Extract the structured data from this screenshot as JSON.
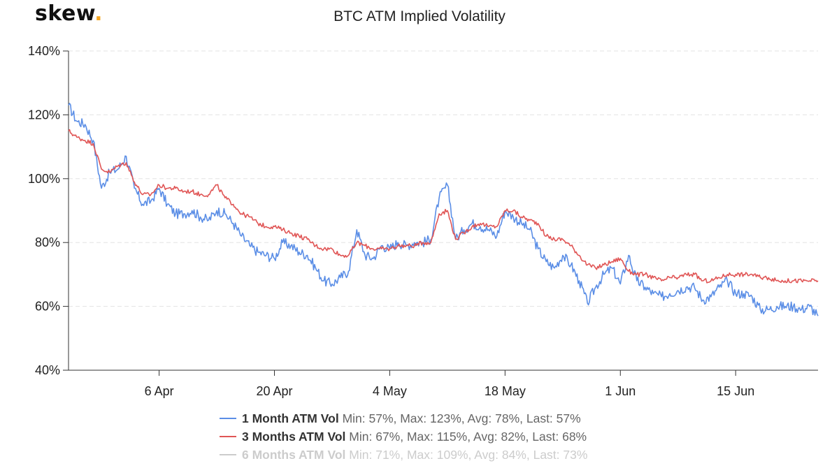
{
  "brand": {
    "logo_text": "skew",
    "logo_dot": ".",
    "accent_color": "#f5a623"
  },
  "chart_data": {
    "type": "line",
    "title": "BTC ATM Implied Volatility",
    "xlabel": "",
    "ylabel": "",
    "x_start": "2020-03-26",
    "x_end": "2020-06-25",
    "x_ticks": [
      {
        "date": "2020-04-06",
        "label": "6 Apr"
      },
      {
        "date": "2020-04-20",
        "label": "20 Apr"
      },
      {
        "date": "2020-05-04",
        "label": "4 May"
      },
      {
        "date": "2020-05-18",
        "label": "18 May"
      },
      {
        "date": "2020-06-01",
        "label": "1 Jun"
      },
      {
        "date": "2020-06-15",
        "label": "15 Jun"
      }
    ],
    "ylim": [
      40,
      140
    ],
    "y_ticks": [
      40,
      60,
      80,
      100,
      120,
      140
    ],
    "y_tick_labels": [
      "40%",
      "60%",
      "80%",
      "100%",
      "120%",
      "140%"
    ],
    "grid": "horizontal dashed",
    "legend_position": "bottom",
    "series": [
      {
        "name": "1 Month ATM Vol",
        "color": "#5b8ee6",
        "visible": true,
        "stats": "Min: 57%, Max: 123%, Avg: 78%, Last: 57%",
        "points": [
          [
            "2020-03-26",
            123
          ],
          [
            "2020-03-27",
            118
          ],
          [
            "2020-03-28",
            117
          ],
          [
            "2020-03-29",
            112
          ],
          [
            "2020-03-30",
            97
          ],
          [
            "2020-03-31",
            102
          ],
          [
            "2020-04-01",
            103
          ],
          [
            "2020-04-02",
            107
          ],
          [
            "2020-04-03",
            97
          ],
          [
            "2020-04-04",
            92
          ],
          [
            "2020-04-05",
            93
          ],
          [
            "2020-04-06",
            97
          ],
          [
            "2020-04-07",
            92
          ],
          [
            "2020-04-08",
            89
          ],
          [
            "2020-04-09",
            89
          ],
          [
            "2020-04-10",
            90
          ],
          [
            "2020-04-11",
            88
          ],
          [
            "2020-04-12",
            87
          ],
          [
            "2020-04-13",
            90
          ],
          [
            "2020-04-14",
            89
          ],
          [
            "2020-04-15",
            86
          ],
          [
            "2020-04-16",
            82
          ],
          [
            "2020-04-17",
            79
          ],
          [
            "2020-04-18",
            77
          ],
          [
            "2020-04-19",
            76
          ],
          [
            "2020-04-20",
            75
          ],
          [
            "2020-04-21",
            80
          ],
          [
            "2020-04-22",
            79
          ],
          [
            "2020-04-23",
            77
          ],
          [
            "2020-04-24",
            76
          ],
          [
            "2020-04-25",
            72
          ],
          [
            "2020-04-26",
            68
          ],
          [
            "2020-04-27",
            67
          ],
          [
            "2020-04-28",
            69
          ],
          [
            "2020-04-29",
            71
          ],
          [
            "2020-04-30",
            84
          ],
          [
            "2020-05-01",
            76
          ],
          [
            "2020-05-02",
            75
          ],
          [
            "2020-05-03",
            79
          ],
          [
            "2020-05-04",
            78
          ],
          [
            "2020-05-05",
            80
          ],
          [
            "2020-05-06",
            79
          ],
          [
            "2020-05-07",
            80
          ],
          [
            "2020-05-08",
            80
          ],
          [
            "2020-05-09",
            81
          ],
          [
            "2020-05-10",
            94
          ],
          [
            "2020-05-11",
            98
          ],
          [
            "2020-05-12",
            81
          ],
          [
            "2020-05-13",
            84
          ],
          [
            "2020-05-14",
            86
          ],
          [
            "2020-05-15",
            85
          ],
          [
            "2020-05-16",
            84
          ],
          [
            "2020-05-17",
            82
          ],
          [
            "2020-05-18",
            90
          ],
          [
            "2020-05-19",
            88
          ],
          [
            "2020-05-20",
            86
          ],
          [
            "2020-05-21",
            84
          ],
          [
            "2020-05-22",
            78
          ],
          [
            "2020-05-23",
            74
          ],
          [
            "2020-05-24",
            72
          ],
          [
            "2020-05-25",
            76
          ],
          [
            "2020-05-26",
            73
          ],
          [
            "2020-05-27",
            68
          ],
          [
            "2020-05-28",
            61
          ],
          [
            "2020-05-29",
            66
          ],
          [
            "2020-05-30",
            70
          ],
          [
            "2020-05-31",
            72
          ],
          [
            "2020-06-01",
            67
          ],
          [
            "2020-06-02",
            76
          ],
          [
            "2020-06-03",
            68
          ],
          [
            "2020-06-04",
            66
          ],
          [
            "2020-06-05",
            64
          ],
          [
            "2020-06-06",
            63
          ],
          [
            "2020-06-07",
            64
          ],
          [
            "2020-06-08",
            65
          ],
          [
            "2020-06-09",
            66
          ],
          [
            "2020-06-10",
            66
          ],
          [
            "2020-06-11",
            62
          ],
          [
            "2020-06-12",
            63
          ],
          [
            "2020-06-13",
            66
          ],
          [
            "2020-06-14",
            68
          ],
          [
            "2020-06-15",
            64
          ],
          [
            "2020-06-16",
            64
          ],
          [
            "2020-06-17",
            63
          ],
          [
            "2020-06-18",
            59
          ],
          [
            "2020-06-19",
            59
          ],
          [
            "2020-06-20",
            60
          ],
          [
            "2020-06-21",
            60
          ],
          [
            "2020-06-22",
            60
          ],
          [
            "2020-06-23",
            59
          ],
          [
            "2020-06-24",
            60
          ],
          [
            "2020-06-25",
            57
          ]
        ]
      },
      {
        "name": "3 Months ATM Vol",
        "color": "#e05555",
        "visible": true,
        "stats": "Min: 67%, Max: 115%, Avg: 82%, Last: 68%",
        "points": [
          [
            "2020-03-26",
            115
          ],
          [
            "2020-03-27",
            113
          ],
          [
            "2020-03-28",
            112
          ],
          [
            "2020-03-29",
            111
          ],
          [
            "2020-03-30",
            103
          ],
          [
            "2020-03-31",
            102
          ],
          [
            "2020-04-01",
            104
          ],
          [
            "2020-04-02",
            105
          ],
          [
            "2020-04-03",
            99
          ],
          [
            "2020-04-04",
            95
          ],
          [
            "2020-04-05",
            95
          ],
          [
            "2020-04-06",
            98
          ],
          [
            "2020-04-07",
            97
          ],
          [
            "2020-04-08",
            97
          ],
          [
            "2020-04-09",
            96
          ],
          [
            "2020-04-10",
            96
          ],
          [
            "2020-04-11",
            95
          ],
          [
            "2020-04-12",
            95
          ],
          [
            "2020-04-13",
            98
          ],
          [
            "2020-04-14",
            94
          ],
          [
            "2020-04-15",
            92
          ],
          [
            "2020-04-16",
            89
          ],
          [
            "2020-04-17",
            88
          ],
          [
            "2020-04-18",
            86
          ],
          [
            "2020-04-19",
            85
          ],
          [
            "2020-04-20",
            85
          ],
          [
            "2020-04-21",
            84
          ],
          [
            "2020-04-22",
            83
          ],
          [
            "2020-04-23",
            82
          ],
          [
            "2020-04-24",
            81
          ],
          [
            "2020-04-25",
            79
          ],
          [
            "2020-04-26",
            78
          ],
          [
            "2020-04-27",
            78
          ],
          [
            "2020-04-28",
            76
          ],
          [
            "2020-04-29",
            76
          ],
          [
            "2020-04-30",
            80
          ],
          [
            "2020-05-01",
            79
          ],
          [
            "2020-05-02",
            78
          ],
          [
            "2020-05-03",
            78
          ],
          [
            "2020-05-04",
            78
          ],
          [
            "2020-05-05",
            79
          ],
          [
            "2020-05-06",
            79
          ],
          [
            "2020-05-07",
            79
          ],
          [
            "2020-05-08",
            80
          ],
          [
            "2020-05-09",
            80
          ],
          [
            "2020-05-10",
            89
          ],
          [
            "2020-05-11",
            90
          ],
          [
            "2020-05-12",
            81
          ],
          [
            "2020-05-13",
            83
          ],
          [
            "2020-05-14",
            85
          ],
          [
            "2020-05-15",
            86
          ],
          [
            "2020-05-16",
            85
          ],
          [
            "2020-05-17",
            85
          ],
          [
            "2020-05-18",
            90
          ],
          [
            "2020-05-19",
            90
          ],
          [
            "2020-05-20",
            88
          ],
          [
            "2020-05-21",
            87
          ],
          [
            "2020-05-22",
            86
          ],
          [
            "2020-05-23",
            82
          ],
          [
            "2020-05-24",
            81
          ],
          [
            "2020-05-25",
            81
          ],
          [
            "2020-05-26",
            79
          ],
          [
            "2020-05-27",
            76
          ],
          [
            "2020-05-28",
            73
          ],
          [
            "2020-05-29",
            72
          ],
          [
            "2020-05-30",
            73
          ],
          [
            "2020-05-31",
            74
          ],
          [
            "2020-06-01",
            75
          ],
          [
            "2020-06-02",
            71
          ],
          [
            "2020-06-03",
            70
          ],
          [
            "2020-06-04",
            70
          ],
          [
            "2020-06-05",
            69
          ],
          [
            "2020-06-06",
            68
          ],
          [
            "2020-06-07",
            69
          ],
          [
            "2020-06-08",
            69
          ],
          [
            "2020-06-09",
            70
          ],
          [
            "2020-06-10",
            70
          ],
          [
            "2020-06-11",
            68
          ],
          [
            "2020-06-12",
            68
          ],
          [
            "2020-06-13",
            69
          ],
          [
            "2020-06-14",
            70
          ],
          [
            "2020-06-15",
            70
          ],
          [
            "2020-06-16",
            70
          ],
          [
            "2020-06-17",
            70
          ],
          [
            "2020-06-18",
            69
          ],
          [
            "2020-06-19",
            69
          ],
          [
            "2020-06-20",
            68
          ],
          [
            "2020-06-21",
            68
          ],
          [
            "2020-06-22",
            68
          ],
          [
            "2020-06-23",
            68
          ],
          [
            "2020-06-24",
            68
          ],
          [
            "2020-06-25",
            68
          ]
        ]
      },
      {
        "name": "6 Months ATM Vol",
        "color": "#cccccc",
        "visible": false,
        "stats": "Min: 71%, Max: 109%, Avg: 84%, Last: 73%",
        "points": []
      }
    ]
  }
}
